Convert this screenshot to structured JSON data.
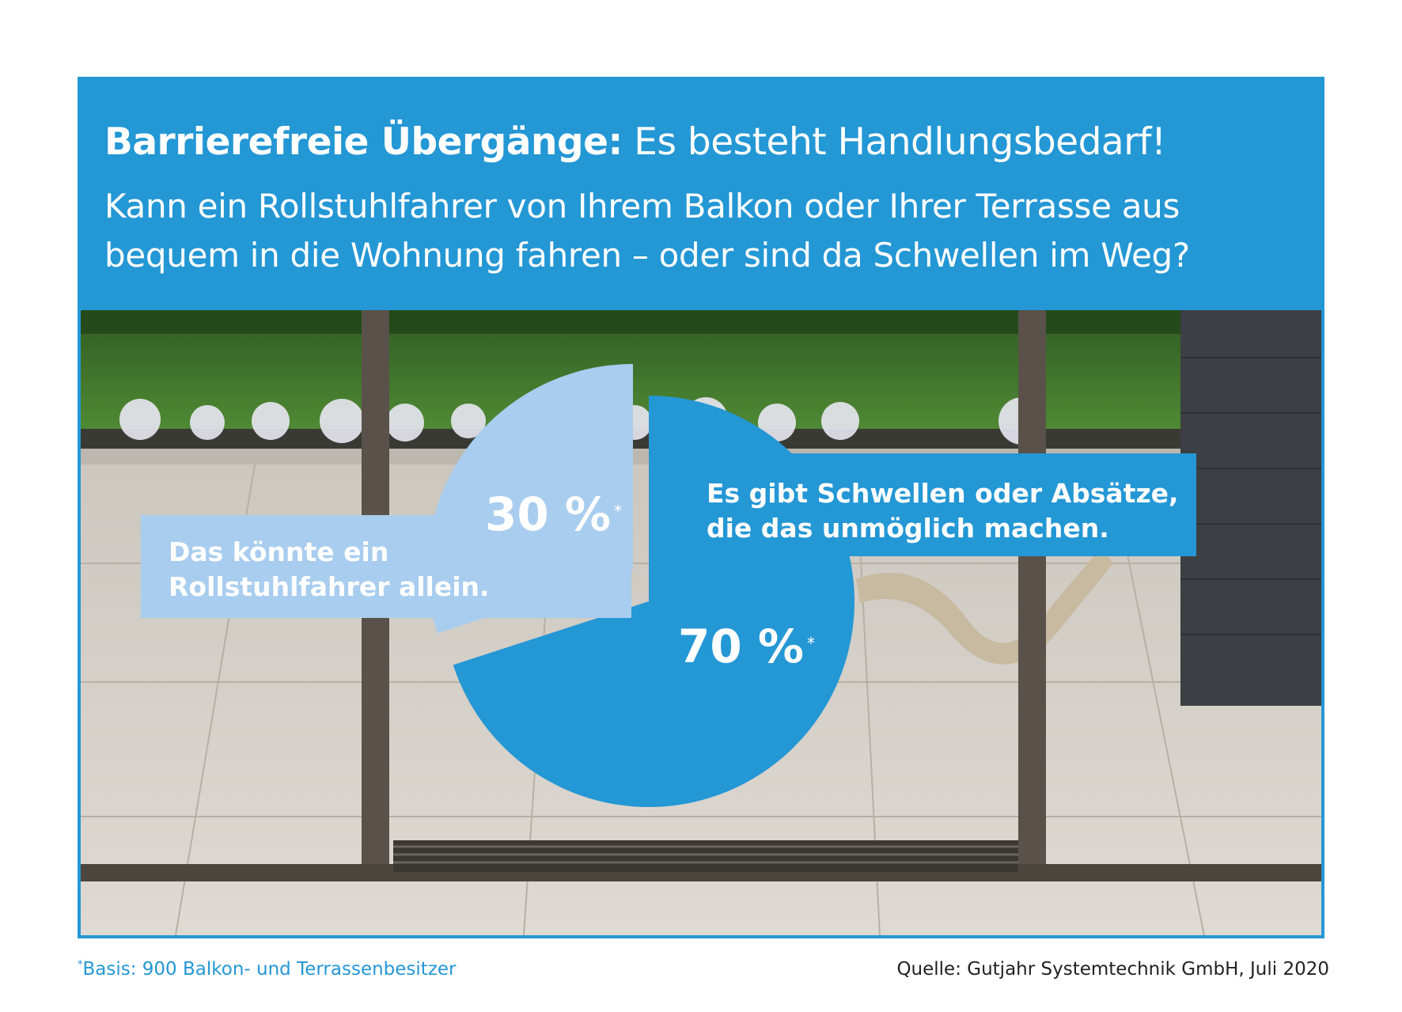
{
  "header": {
    "title_bold": "Barrierefreie Übergänge:",
    "title_rest": "Es besteht Handlungsbedarf!",
    "question": "Kann ein Rollstuhlfahrer von Ihrem Balkon oder Ihrer Terrasse aus bequem in die Wohnung fahren – oder sind da Schwellen im Weg?"
  },
  "chart_data": {
    "type": "pie",
    "categories": [
      "Das könnte ein Rollstuhlfahrer allein.",
      "Es gibt Schwellen oder Absätze, die das unmöglich machen."
    ],
    "values": [
      30,
      70
    ],
    "value_labels": [
      "30 %",
      "70 %"
    ],
    "value_marker": "*",
    "colors": [
      "#a8cdee",
      "#2497d5"
    ],
    "grid": false,
    "legend": "none"
  },
  "footnote": {
    "marker": "*",
    "text": "Basis: 900 Balkon- und Terrassenbesitzer"
  },
  "source": "Quelle: Gutjahr Systemtechnik GmbH, Juli 2020",
  "colors": {
    "primary_blue": "#2497d5",
    "light_blue": "#a8cdee",
    "text_dark": "#222222"
  }
}
